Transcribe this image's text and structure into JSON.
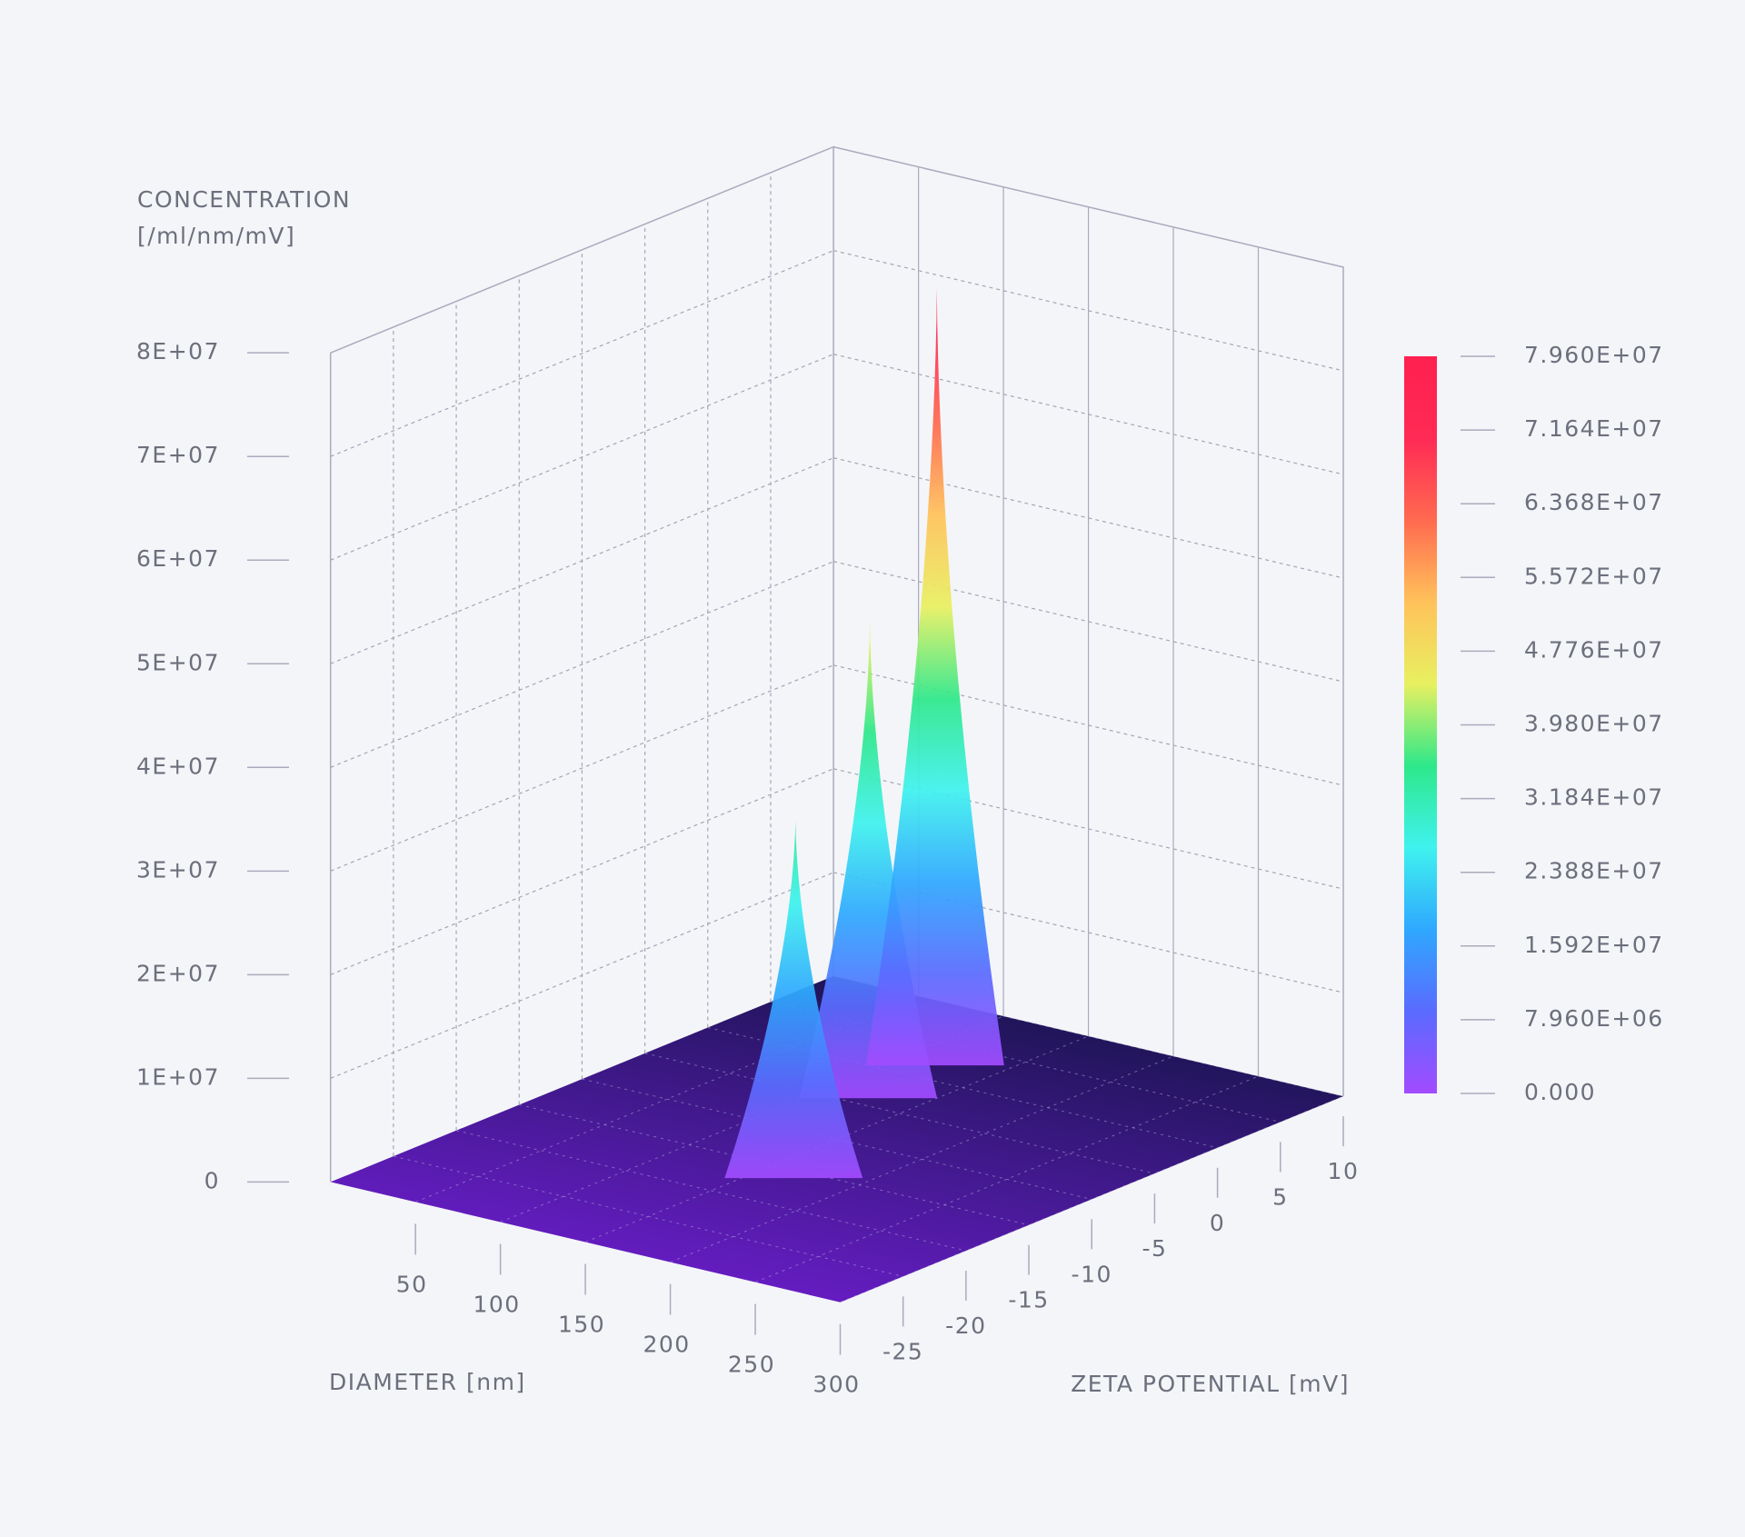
{
  "chart_data": {
    "type": "surface3d",
    "zlabel": [
      "CONCENTRATION",
      "[/ml/nm/mV]"
    ],
    "xlabel": "DIAMETER [nm]",
    "ylabel": "ZETA POTENTIAL [mV]",
    "xlim": [
      0,
      300
    ],
    "xticks": [
      50,
      100,
      150,
      200,
      250,
      300
    ],
    "ylim": [
      -30,
      10
    ],
    "yticks": [
      -25,
      -20,
      -15,
      -10,
      -5,
      0,
      5,
      10
    ],
    "zlim": [
      0,
      80000000
    ],
    "zticks": [
      0,
      {
        "value": 10000000,
        "label": "1E+07"
      },
      {
        "value": 20000000,
        "label": "2E+07"
      },
      {
        "value": 30000000,
        "label": "3E+07"
      },
      {
        "value": 40000000,
        "label": "4E+07"
      },
      {
        "value": 50000000,
        "label": "5E+07"
      },
      {
        "value": 60000000,
        "label": "6E+07"
      },
      {
        "value": 70000000,
        "label": "7E+07"
      },
      {
        "value": 80000000,
        "label": "8E+07"
      }
    ],
    "grid": true,
    "peaks": {
      "diameter": [
        125,
        120,
        170
      ],
      "zeta": [
        -4,
        2,
        -16
      ],
      "values": [
        46000000,
        75000000,
        34500000
      ]
    },
    "colorscale": [
      "#a24bff",
      "#5a6bff",
      "#2fa8ff",
      "#3ff2ee",
      "#2ee88a",
      "#e8f060",
      "#ffc25a",
      "#ff6a50",
      "#ff2a55",
      "#ff2050"
    ],
    "colorbar": {
      "lim": [
        0,
        79600000
      ],
      "ticks": [
        {
          "value": 0,
          "label": "0.000"
        },
        {
          "value": 7960000,
          "label": "7.960E+06"
        },
        {
          "value": 15920000,
          "label": "1.592E+07"
        },
        {
          "value": 23880000,
          "label": "2.388E+07"
        },
        {
          "value": 31840000,
          "label": "3.184E+07"
        },
        {
          "value": 39800000,
          "label": "3.980E+07"
        },
        {
          "value": 47760000,
          "label": "4.776E+07"
        },
        {
          "value": 55720000,
          "label": "5.572E+07"
        },
        {
          "value": 63680000,
          "label": "6.368E+07"
        },
        {
          "value": 71640000,
          "label": "7.164E+07"
        },
        {
          "value": 79600000,
          "label": "7.960E+07"
        }
      ]
    }
  }
}
